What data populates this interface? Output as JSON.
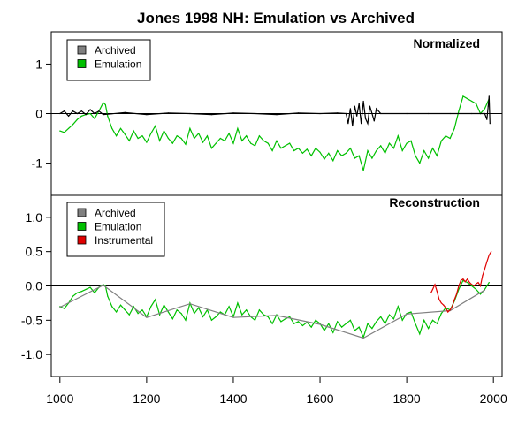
{
  "title": "Jones 1998 NH: Emulation vs Archived",
  "colors": {
    "archived": "#000000",
    "archived_swatch": "#808080",
    "emulation": "#00c000",
    "instrumental": "#e00000",
    "axes": "#000000"
  },
  "chart_data": [
    {
      "type": "line",
      "panel_label": "Normalized",
      "xlim": [
        980,
        2020
      ],
      "ylim": [
        -1.65,
        1.65
      ],
      "yticks": [
        1,
        0,
        -1
      ],
      "hline": 0,
      "grid": false,
      "legend": {
        "position": "top-left",
        "entries": [
          "Archived",
          "Emulation"
        ]
      },
      "series": [
        {
          "name": "Emulation",
          "color_key": "emulation",
          "x": [
            1000,
            1010,
            1020,
            1030,
            1040,
            1050,
            1060,
            1070,
            1080,
            1090,
            1100,
            1105,
            1110,
            1120,
            1130,
            1140,
            1150,
            1160,
            1170,
            1180,
            1190,
            1200,
            1210,
            1220,
            1230,
            1240,
            1250,
            1260,
            1270,
            1280,
            1290,
            1300,
            1310,
            1320,
            1330,
            1340,
            1350,
            1360,
            1370,
            1380,
            1390,
            1400,
            1410,
            1420,
            1430,
            1440,
            1450,
            1460,
            1470,
            1480,
            1490,
            1500,
            1510,
            1520,
            1530,
            1540,
            1550,
            1560,
            1570,
            1580,
            1590,
            1600,
            1610,
            1620,
            1630,
            1640,
            1650,
            1660,
            1670,
            1680,
            1690,
            1700,
            1710,
            1720,
            1730,
            1740,
            1750,
            1760,
            1770,
            1780,
            1790,
            1800,
            1810,
            1820,
            1830,
            1840,
            1850,
            1860,
            1870,
            1880,
            1890,
            1900,
            1910,
            1920,
            1930,
            1940,
            1950,
            1960,
            1970,
            1980,
            1990
          ],
          "y": [
            -0.35,
            -0.38,
            -0.3,
            -0.22,
            -0.12,
            -0.05,
            -0.02,
            0.0,
            -0.1,
            0.05,
            0.22,
            0.18,
            -0.05,
            -0.3,
            -0.45,
            -0.3,
            -0.42,
            -0.55,
            -0.35,
            -0.5,
            -0.45,
            -0.58,
            -0.4,
            -0.25,
            -0.55,
            -0.35,
            -0.5,
            -0.6,
            -0.45,
            -0.5,
            -0.62,
            -0.3,
            -0.5,
            -0.4,
            -0.58,
            -0.45,
            -0.7,
            -0.6,
            -0.5,
            -0.55,
            -0.4,
            -0.6,
            -0.3,
            -0.55,
            -0.45,
            -0.6,
            -0.65,
            -0.45,
            -0.55,
            -0.6,
            -0.75,
            -0.55,
            -0.7,
            -0.65,
            -0.6,
            -0.75,
            -0.7,
            -0.8,
            -0.72,
            -0.85,
            -0.7,
            -0.78,
            -0.92,
            -0.8,
            -0.95,
            -0.75,
            -0.85,
            -0.8,
            -0.7,
            -0.9,
            -0.85,
            -1.15,
            -0.75,
            -0.9,
            -0.75,
            -0.65,
            -0.8,
            -0.6,
            -0.7,
            -0.45,
            -0.75,
            -0.6,
            -0.55,
            -0.85,
            -1.0,
            -0.75,
            -0.9,
            -0.7,
            -0.85,
            -0.55,
            -0.45,
            -0.5,
            -0.3,
            0.05,
            0.35,
            0.3,
            0.25,
            0.2,
            0.0,
            0.1,
            0.3
          ]
        },
        {
          "name": "Archived",
          "color_key": "archived",
          "x": [
            1000,
            1010,
            1020,
            1030,
            1040,
            1050,
            1060,
            1070,
            1080,
            1090,
            1100,
            1150,
            1200,
            1250,
            1300,
            1350,
            1400,
            1450,
            1500,
            1550,
            1600,
            1640,
            1660,
            1665,
            1670,
            1675,
            1680,
            1685,
            1690,
            1695,
            1700,
            1705,
            1710,
            1715,
            1720,
            1725,
            1730,
            1740,
            1800,
            1850,
            1900,
            1950,
            1980,
            1985,
            1988,
            1990,
            1992
          ],
          "y": [
            0.0,
            0.05,
            -0.05,
            0.05,
            0.0,
            0.05,
            -0.02,
            0.08,
            0.0,
            0.05,
            -0.02,
            0.02,
            -0.02,
            0.01,
            0.0,
            -0.02,
            0.01,
            0.0,
            -0.02,
            0.01,
            0.0,
            0.01,
            0.0,
            -0.2,
            0.1,
            -0.25,
            0.15,
            -0.05,
            0.2,
            -0.2,
            0.25,
            -0.1,
            -0.2,
            0.15,
            0.0,
            -0.15,
            0.1,
            0.0,
            0.0,
            0.0,
            0.0,
            0.0,
            0.0,
            -0.12,
            0.15,
            0.35,
            -0.2
          ]
        }
      ]
    },
    {
      "type": "line",
      "panel_label": "Reconstruction",
      "xlim": [
        980,
        2020
      ],
      "ylim": [
        -1.32,
        1.32
      ],
      "yticks": [
        1.0,
        0.5,
        0.0,
        -0.5,
        -1.0
      ],
      "ytick_labels": [
        "1.0",
        "0.5",
        "0.0",
        "-0.5",
        "-1.0"
      ],
      "xticks": [
        1000,
        1200,
        1400,
        1600,
        1800,
        2000
      ],
      "hline": 0,
      "grid": false,
      "legend": {
        "position": "top-left",
        "entries": [
          "Archived",
          "Emulation",
          "Instrumental"
        ]
      },
      "series": [
        {
          "name": "Emulation",
          "color_key": "emulation",
          "x": [
            1000,
            1010,
            1020,
            1030,
            1040,
            1050,
            1060,
            1070,
            1080,
            1090,
            1100,
            1105,
            1110,
            1120,
            1130,
            1140,
            1150,
            1160,
            1170,
            1180,
            1190,
            1200,
            1210,
            1220,
            1230,
            1240,
            1250,
            1260,
            1270,
            1280,
            1290,
            1300,
            1310,
            1320,
            1330,
            1340,
            1350,
            1360,
            1370,
            1380,
            1390,
            1400,
            1410,
            1420,
            1430,
            1440,
            1450,
            1460,
            1470,
            1480,
            1490,
            1500,
            1510,
            1520,
            1530,
            1540,
            1550,
            1560,
            1570,
            1580,
            1590,
            1600,
            1610,
            1620,
            1630,
            1640,
            1650,
            1660,
            1670,
            1680,
            1690,
            1700,
            1710,
            1720,
            1730,
            1740,
            1750,
            1760,
            1770,
            1780,
            1790,
            1800,
            1810,
            1820,
            1830,
            1840,
            1850,
            1860,
            1870,
            1880,
            1890,
            1900,
            1910,
            1920,
            1930,
            1940,
            1950,
            1960,
            1970,
            1980,
            1990
          ],
          "y": [
            -0.3,
            -0.33,
            -0.25,
            -0.15,
            -0.1,
            -0.08,
            -0.05,
            -0.02,
            -0.1,
            -0.02,
            0.02,
            0.0,
            -0.15,
            -0.3,
            -0.38,
            -0.28,
            -0.35,
            -0.42,
            -0.3,
            -0.4,
            -0.35,
            -0.45,
            -0.3,
            -0.2,
            -0.42,
            -0.28,
            -0.38,
            -0.48,
            -0.35,
            -0.4,
            -0.5,
            -0.25,
            -0.4,
            -0.32,
            -0.45,
            -0.35,
            -0.5,
            -0.45,
            -0.38,
            -0.42,
            -0.3,
            -0.45,
            -0.25,
            -0.42,
            -0.35,
            -0.45,
            -0.5,
            -0.35,
            -0.42,
            -0.45,
            -0.55,
            -0.42,
            -0.52,
            -0.48,
            -0.45,
            -0.55,
            -0.52,
            -0.58,
            -0.53,
            -0.6,
            -0.5,
            -0.55,
            -0.65,
            -0.55,
            -0.68,
            -0.52,
            -0.6,
            -0.55,
            -0.5,
            -0.65,
            -0.6,
            -0.75,
            -0.55,
            -0.62,
            -0.52,
            -0.45,
            -0.55,
            -0.42,
            -0.48,
            -0.3,
            -0.5,
            -0.4,
            -0.38,
            -0.55,
            -0.7,
            -0.5,
            -0.62,
            -0.5,
            -0.55,
            -0.4,
            -0.32,
            -0.35,
            -0.22,
            -0.05,
            0.08,
            0.05,
            0.0,
            -0.05,
            -0.12,
            -0.05,
            0.05
          ]
        },
        {
          "name": "Archived",
          "color_key": "archived_swatch",
          "x": [
            1000,
            1100,
            1200,
            1300,
            1400,
            1500,
            1600,
            1700,
            1800,
            1900,
            1980
          ],
          "y": [
            -0.31,
            0.01,
            -0.46,
            -0.26,
            -0.46,
            -0.43,
            -0.56,
            -0.76,
            -0.41,
            -0.36,
            -0.06
          ]
        },
        {
          "name": "Instrumental",
          "color_key": "instrumental",
          "x": [
            1856,
            1860,
            1865,
            1870,
            1875,
            1880,
            1885,
            1890,
            1895,
            1900,
            1905,
            1910,
            1915,
            1920,
            1925,
            1930,
            1935,
            1940,
            1945,
            1950,
            1955,
            1960,
            1965,
            1970,
            1975,
            1980,
            1985,
            1990,
            1995
          ],
          "y": [
            -0.1,
            -0.05,
            0.02,
            -0.08,
            -0.2,
            -0.25,
            -0.28,
            -0.32,
            -0.38,
            -0.35,
            -0.3,
            -0.2,
            -0.12,
            0.0,
            0.08,
            0.1,
            0.06,
            0.1,
            0.05,
            0.02,
            0.0,
            0.03,
            0.05,
            0.0,
            0.15,
            0.25,
            0.35,
            0.45,
            0.5
          ]
        }
      ]
    }
  ]
}
